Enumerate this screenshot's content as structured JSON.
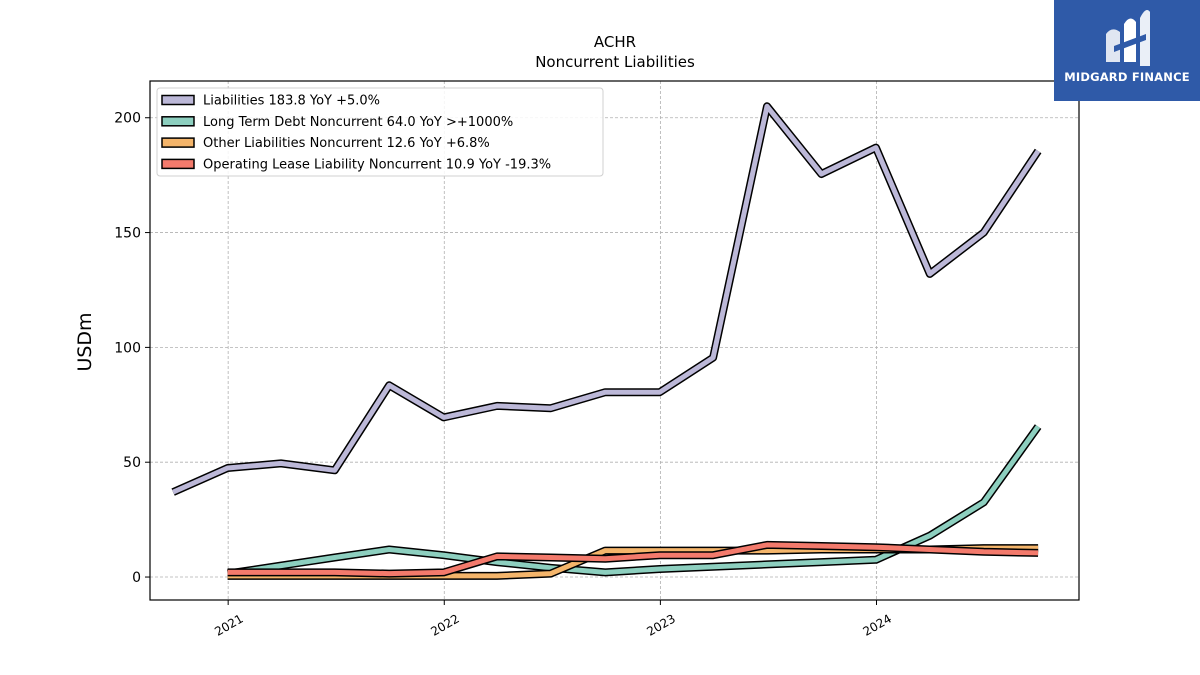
{
  "chart_data": {
    "type": "line",
    "title": "ACHR",
    "subtitle": "Noncurrent  Liabilities",
    "ylabel": "USDm",
    "xlabel": "",
    "ylim": [
      -10,
      216
    ],
    "xlim": [
      "2020-08-22",
      "2024-12-08"
    ],
    "yticks": [
      0,
      50,
      100,
      150,
      200
    ],
    "xticks": [
      {
        "date": "2021-01-01",
        "label": "2021"
      },
      {
        "date": "2022-01-01",
        "label": "2022"
      },
      {
        "date": "2023-01-01",
        "label": "2023"
      },
      {
        "date": "2024-01-01",
        "label": "2024"
      }
    ],
    "grid": true,
    "legend_position": "top-left",
    "series": [
      {
        "name": "Liabilities  183.8 YoY +5.0%",
        "color": "#bcb8d8",
        "points": [
          [
            "2020-09-30",
            37.0
          ],
          [
            "2020-12-31",
            47.5
          ],
          [
            "2021-03-31",
            49.5
          ],
          [
            "2021-06-30",
            46.5
          ],
          [
            "2021-09-30",
            83.5
          ],
          [
            "2021-12-31",
            69.5
          ],
          [
            "2022-03-31",
            74.5
          ],
          [
            "2022-06-30",
            73.5
          ],
          [
            "2022-09-30",
            80.5
          ],
          [
            "2022-12-31",
            80.5
          ],
          [
            "2023-03-31",
            95.5
          ],
          [
            "2023-06-30",
            205.0
          ],
          [
            "2023-09-30",
            175.5
          ],
          [
            "2023-12-31",
            187.0
          ],
          [
            "2024-03-31",
            132.0
          ],
          [
            "2024-06-30",
            150.0
          ],
          [
            "2024-09-30",
            185.5
          ]
        ]
      },
      {
        "name": "Long Term Debt Noncurrent  64.0 YoY >+1000%",
        "color": "#8dcfbf",
        "points": [
          [
            "2020-12-31",
            1.5
          ],
          [
            "2021-03-31",
            5.0
          ],
          [
            "2021-06-30",
            8.5
          ],
          [
            "2021-09-30",
            12.0
          ],
          [
            "2021-12-31",
            9.5
          ],
          [
            "2022-03-31",
            6.5
          ],
          [
            "2022-06-30",
            4.0
          ],
          [
            "2022-09-30",
            2.0
          ],
          [
            "2022-12-31",
            3.5
          ],
          [
            "2023-03-31",
            4.5
          ],
          [
            "2023-06-30",
            5.5
          ],
          [
            "2023-09-30",
            6.5
          ],
          [
            "2023-12-31",
            7.5
          ],
          [
            "2024-03-31",
            18.0
          ],
          [
            "2024-06-30",
            32.5
          ],
          [
            "2024-09-30",
            65.5
          ]
        ]
      },
      {
        "name": "Other Liabilities Noncurrent  12.6 YoY +6.8%",
        "color": "#f4b56b",
        "points": [
          [
            "2020-12-31",
            0.5
          ],
          [
            "2021-03-31",
            0.5
          ],
          [
            "2021-06-30",
            0.5
          ],
          [
            "2021-09-30",
            0.5
          ],
          [
            "2021-12-31",
            0.5
          ],
          [
            "2022-03-31",
            0.5
          ],
          [
            "2022-06-30",
            1.5
          ],
          [
            "2022-09-30",
            11.5
          ],
          [
            "2022-12-31",
            11.5
          ],
          [
            "2023-03-31",
            11.5
          ],
          [
            "2023-06-30",
            11.5
          ],
          [
            "2023-09-30",
            12.0
          ],
          [
            "2023-12-31",
            12.0
          ],
          [
            "2024-03-31",
            12.0
          ],
          [
            "2024-06-30",
            12.6
          ],
          [
            "2024-09-30",
            12.6
          ]
        ]
      },
      {
        "name": "Operating Lease Liability Noncurrent  10.9 YoY -19.3%",
        "color": "#f37a6c",
        "points": [
          [
            "2020-12-31",
            2.0
          ],
          [
            "2021-03-31",
            2.0
          ],
          [
            "2021-06-30",
            2.0
          ],
          [
            "2021-09-30",
            1.5
          ],
          [
            "2021-12-31",
            2.0
          ],
          [
            "2022-03-31",
            9.0
          ],
          [
            "2022-06-30",
            8.5
          ],
          [
            "2022-09-30",
            8.0
          ],
          [
            "2022-12-31",
            9.5
          ],
          [
            "2023-03-31",
            9.5
          ],
          [
            "2023-06-30",
            14.0
          ],
          [
            "2023-09-30",
            13.5
          ],
          [
            "2023-12-31",
            13.0
          ],
          [
            "2024-03-31",
            12.0
          ],
          [
            "2024-06-30",
            11.0
          ],
          [
            "2024-09-30",
            10.5
          ]
        ]
      }
    ]
  },
  "logo": {
    "text": "MIDGARD FINANCE",
    "color": "#2f5aa8"
  }
}
